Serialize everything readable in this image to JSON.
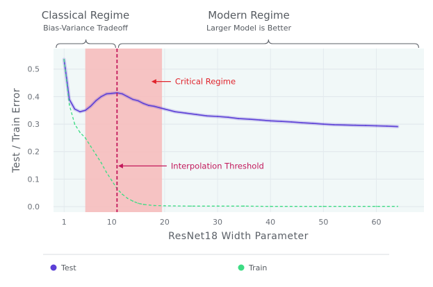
{
  "chart_data": {
    "type": "line",
    "title": "",
    "xlabel": "ResNet18 Width Parameter",
    "ylabel": "Test / Train Error",
    "xlim": [
      -1,
      69
    ],
    "ylim": [
      -0.02,
      0.575
    ],
    "xticks": [
      1,
      10,
      20,
      30,
      40,
      50,
      60
    ],
    "yticks": [
      0.0,
      0.1,
      0.2,
      0.3,
      0.4,
      0.5
    ],
    "ytick_labels": [
      "0.0",
      "0.1",
      "0.2",
      "0.3",
      "0.4",
      "0.5"
    ],
    "grid": true,
    "legend_position": "bottom",
    "series": [
      {
        "name": "Test",
        "color": "#5b3fd6",
        "style": "solid",
        "x": [
          1,
          2,
          3,
          4,
          5,
          6,
          7,
          8,
          9,
          10,
          11,
          12,
          13,
          14,
          15,
          16,
          17,
          18,
          19,
          20,
          22,
          24,
          26,
          28,
          30,
          32,
          34,
          36,
          38,
          40,
          42,
          44,
          46,
          48,
          50,
          52,
          54,
          56,
          58,
          60,
          62,
          64
        ],
        "values": [
          0.535,
          0.39,
          0.355,
          0.345,
          0.35,
          0.365,
          0.385,
          0.4,
          0.41,
          0.412,
          0.414,
          0.41,
          0.4,
          0.39,
          0.385,
          0.375,
          0.368,
          0.365,
          0.36,
          0.355,
          0.345,
          0.34,
          0.335,
          0.33,
          0.328,
          0.325,
          0.32,
          0.318,
          0.315,
          0.312,
          0.31,
          0.308,
          0.305,
          0.303,
          0.3,
          0.298,
          0.297,
          0.296,
          0.295,
          0.294,
          0.293,
          0.291
        ]
      },
      {
        "name": "Train",
        "color": "#3ddc84",
        "style": "dashed",
        "x": [
          1,
          2,
          3,
          4,
          5,
          6,
          7,
          8,
          9,
          10,
          11,
          12,
          13,
          14,
          15,
          16,
          18,
          20,
          25,
          30,
          35,
          40,
          50,
          60,
          64
        ],
        "values": [
          0.535,
          0.37,
          0.3,
          0.27,
          0.25,
          0.22,
          0.19,
          0.16,
          0.125,
          0.095,
          0.065,
          0.045,
          0.03,
          0.02,
          0.012,
          0.008,
          0.004,
          0.003,
          0.002,
          0.002,
          0.002,
          0.001,
          0.001,
          0.001,
          0.001
        ]
      }
    ],
    "regions": [
      {
        "name": "critical-regime",
        "x_start": 5,
        "x_end": 19.5,
        "color": "#f6bcbc"
      }
    ],
    "markers": [
      {
        "name": "interpolation-threshold",
        "x": 11,
        "color": "#c2185b",
        "style": "dashed"
      }
    ],
    "annotations": {
      "critical": {
        "text": "Critical Regime",
        "color": "#e0242c",
        "arrow_x": 17.5,
        "y": 0.455
      },
      "interpolation": {
        "text": "Interpolation Threshold",
        "color": "#c2185b",
        "arrow_x": 11.2,
        "y": 0.148
      }
    },
    "regimes": {
      "classical": {
        "title": "Classical Regime",
        "subtitle": "Bias-Variance Tradeoff",
        "x_start": -0.5,
        "x_end": 11
      },
      "modern": {
        "title": "Modern Regime",
        "subtitle": "Larger Model is Better",
        "x_start": 11,
        "x_end": 68
      }
    }
  }
}
